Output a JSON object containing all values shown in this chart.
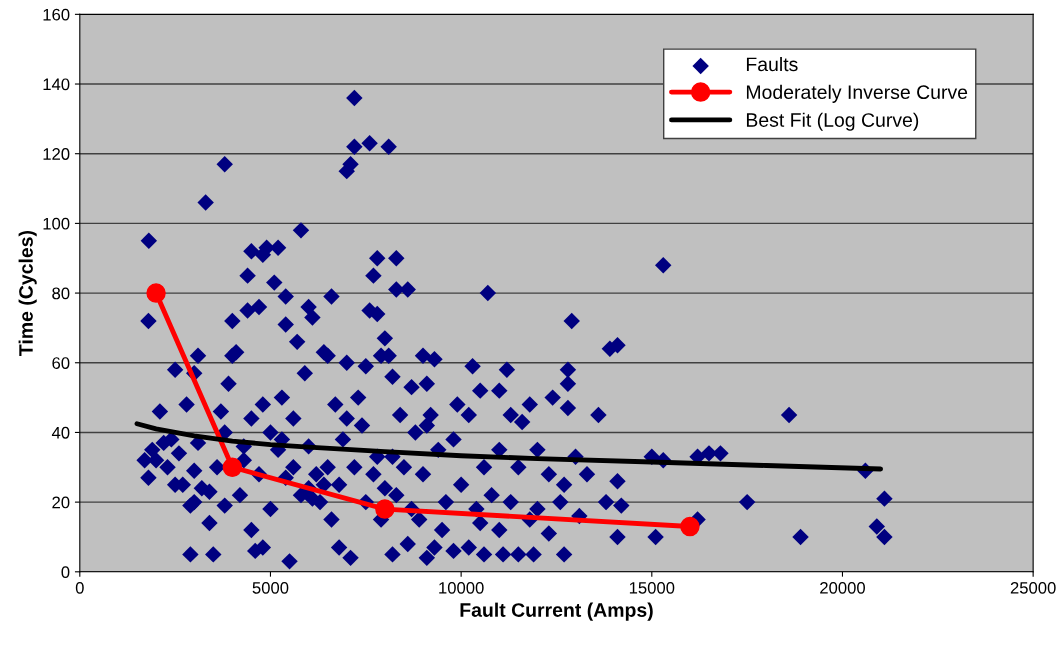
{
  "chart_data": {
    "type": "scatter",
    "xlabel": "Fault Current (Amps)",
    "ylabel": "Time (Cycles)",
    "xlim": [
      0,
      25000
    ],
    "ylim": [
      0,
      160
    ],
    "xticks": [
      0,
      5000,
      10000,
      15000,
      20000,
      25000
    ],
    "yticks": [
      0,
      20,
      40,
      60,
      80,
      100,
      120,
      140,
      160
    ],
    "grid": "y",
    "legend": "top right",
    "series": [
      {
        "name": "Faults",
        "marker": "diamond",
        "color": "#000080",
        "x": [
          1810,
          1800,
          1700,
          1800,
          1900,
          2100,
          2200,
          2500,
          2800,
          2700,
          2500,
          2900,
          3100,
          3000,
          3100,
          3000,
          3300,
          3800,
          3500,
          3600,
          3400,
          3800,
          4000,
          4100,
          4000,
          3900,
          4300,
          4400,
          4500,
          4400,
          4800,
          4700,
          4900,
          5200,
          5100,
          5400,
          5800,
          5400,
          5700,
          5300,
          5900,
          6000,
          6100,
          6400,
          6600,
          6500,
          7000,
          7200,
          7200,
          7100,
          7000,
          7600,
          8100,
          7800,
          8300,
          7700,
          8300,
          8600,
          7600,
          7800,
          8000,
          7900,
          8100,
          9000,
          9300,
          9100,
          8700,
          8200,
          7500,
          10700,
          10300,
          10500,
          11200,
          11000,
          11300,
          11800,
          12400,
          11600,
          12800,
          12800,
          12900,
          12800,
          13600,
          13900,
          14100,
          15300,
          15000,
          15300,
          16200,
          16500,
          16800,
          18600,
          17500,
          18900,
          20600,
          20900,
          21100,
          21100,
          15100,
          16200,
          14100,
          14100,
          13100,
          12700,
          12300,
          12700,
          11900,
          11500,
          11100,
          10600,
          10200,
          9800,
          9300,
          9100,
          8600,
          8200,
          7100,
          6800,
          5500,
          4800,
          4600,
          4500,
          3800,
          3400,
          2900,
          3000,
          2600,
          2300,
          2000,
          4200,
          4700,
          5200,
          5600,
          5000,
          5400,
          5800,
          6000,
          6200,
          6300,
          6500,
          6600,
          6800,
          6900,
          7000,
          7200,
          7400,
          7500,
          7700,
          7900,
          8000,
          8200,
          8500,
          8700,
          8800,
          9000,
          9200,
          9400,
          9600,
          9800,
          10000,
          10200,
          10400,
          10600,
          10800,
          11000,
          11300,
          11500,
          11800,
          12000,
          12300,
          12600,
          13000,
          13300,
          13800,
          14200,
          9500,
          10500,
          11000,
          12000,
          4500,
          4800,
          5000,
          5300,
          6000,
          6700,
          7300,
          8400,
          9100,
          9900,
          5600,
          6100,
          6400,
          7800,
          8300,
          8900,
          3700,
          4300,
          3200,
          2400
        ],
        "values": [
          95,
          72,
          32,
          27,
          35,
          46,
          37,
          58,
          48,
          25,
          25,
          5,
          37,
          57,
          62,
          20,
          106,
          117,
          5,
          30,
          14,
          40,
          72,
          63,
          62,
          54,
          32,
          85,
          92,
          75,
          91,
          76,
          93,
          93,
          83,
          79,
          98,
          71,
          66,
          50,
          57,
          76,
          73,
          63,
          79,
          62,
          60,
          136,
          122,
          117,
          115,
          123,
          122,
          90,
          90,
          85,
          81,
          81,
          75,
          74,
          67,
          62,
          62,
          62,
          61,
          54,
          53,
          56,
          59,
          80,
          59,
          52,
          58,
          52,
          45,
          48,
          50,
          43,
          58,
          54,
          72,
          47,
          45,
          64,
          65,
          88,
          33,
          32,
          33,
          34,
          34,
          45,
          20,
          10,
          29,
          13,
          21,
          10,
          10,
          15,
          10,
          26,
          16,
          25,
          11,
          5,
          5,
          5,
          5,
          5,
          7,
          6,
          7,
          4,
          8,
          5,
          4,
          7,
          3,
          7,
          6,
          12,
          19,
          23,
          19,
          29,
          34,
          30,
          32,
          22,
          28,
          35,
          44,
          18,
          27,
          22,
          24,
          28,
          20,
          30,
          15,
          25,
          38,
          44,
          30,
          42,
          20,
          28,
          15,
          24,
          33,
          30,
          18,
          40,
          28,
          45,
          35,
          20,
          38,
          25,
          45,
          18,
          30,
          22,
          35,
          20,
          30,
          15,
          35,
          28,
          20,
          33,
          28,
          20,
          19,
          12,
          14,
          12,
          18,
          44,
          48,
          40,
          38,
          36,
          48,
          50,
          45,
          42,
          48,
          30,
          21,
          25,
          33,
          22,
          15,
          46,
          36,
          24,
          38
        ]
      },
      {
        "name": "Moderately Inverse Curve",
        "type": "line",
        "marker": "circle",
        "color": "#ff0000",
        "x": [
          2000,
          4000,
          8000,
          16000
        ],
        "values": [
          80,
          30,
          18,
          13
        ]
      },
      {
        "name": "Best Fit (Log Curve)",
        "type": "line",
        "marker": "none",
        "color": "#000000",
        "x": [
          1500,
          2000,
          3000,
          4000,
          5000,
          6000,
          8000,
          10000,
          12000,
          15000,
          18000,
          21000
        ],
        "values": [
          42.5,
          41,
          39,
          37.5,
          36.5,
          35.8,
          34.5,
          33.3,
          32.5,
          31.5,
          30.5,
          29.5
        ]
      }
    ]
  }
}
